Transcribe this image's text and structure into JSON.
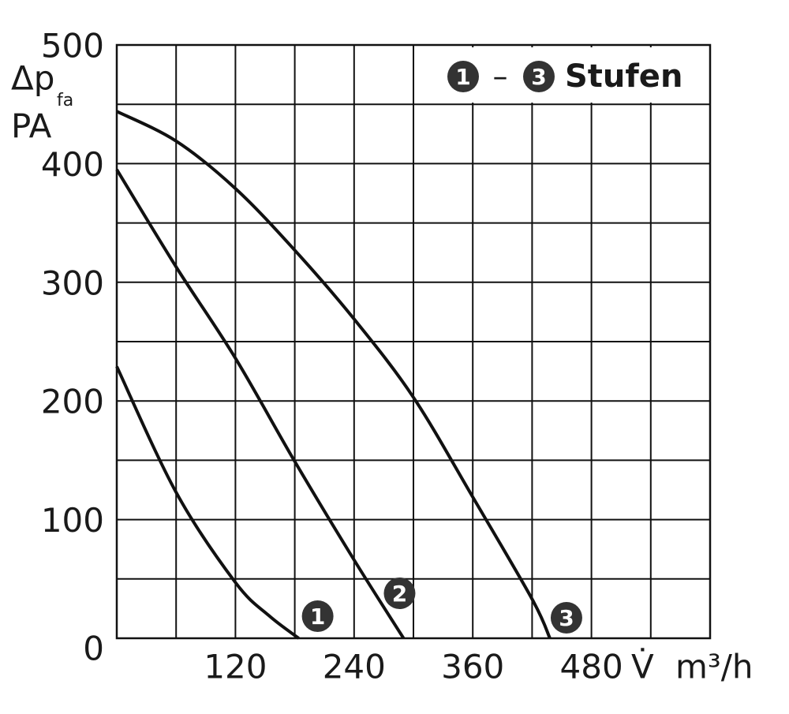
{
  "chart_data": {
    "type": "line",
    "y_label": {
      "symbol": "Δp",
      "subscript": "fa",
      "unit": "PA"
    },
    "x_label": {
      "symbol": "V̇",
      "unit": "m³/h"
    },
    "xlim": [
      0,
      600
    ],
    "ylim": [
      0,
      500
    ],
    "xticks": [
      120,
      240,
      360,
      480
    ],
    "yticks": [
      0,
      100,
      200,
      300,
      400,
      500
    ],
    "xgrid": [
      0,
      60,
      120,
      180,
      240,
      300,
      360,
      420,
      480,
      540,
      600
    ],
    "ygrid": [
      0,
      50,
      100,
      150,
      200,
      250,
      300,
      350,
      400,
      450,
      500
    ],
    "grid": true,
    "legend": {
      "first": "1",
      "separator": "–",
      "last": "3",
      "text": "Stufen"
    },
    "series": [
      {
        "name": "1",
        "color": "#111111",
        "x": [
          0,
          60,
          120,
          154,
          184
        ],
        "values": [
          229,
          123,
          47,
          19,
          0
        ]
      },
      {
        "name": "2",
        "color": "#111111",
        "x": [
          0,
          60,
          120,
          180,
          240,
          290
        ],
        "values": [
          395,
          313,
          236,
          149,
          66,
          0
        ]
      },
      {
        "name": "3",
        "color": "#111111",
        "x": [
          0,
          60,
          120,
          180,
          240,
          300,
          360,
          420,
          438
        ],
        "values": [
          444,
          419,
          379,
          327,
          269,
          203,
          119,
          33,
          0
        ]
      }
    ]
  }
}
